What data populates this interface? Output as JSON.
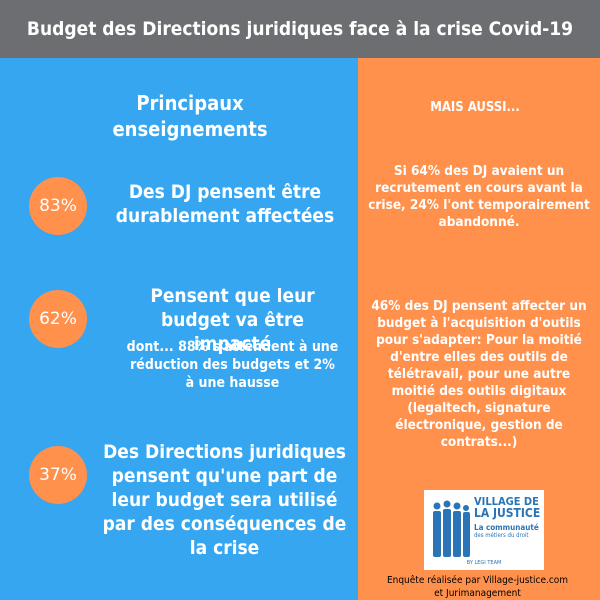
{
  "header": {
    "title": "Budget des Directions juridiques face à la crise Covid-19"
  },
  "left": {
    "section_title": "Principaux enseignements",
    "stats": [
      {
        "value": "83%",
        "text": "Des DJ pensent être durablement affectées"
      },
      {
        "value": "62%",
        "text": "Pensent que leur budget va être impacté",
        "sub": "dont... 88% s'attendent à une réduction des budgets et 2% à une hausse"
      },
      {
        "value": "37%",
        "text": "Des Directions juridiques pensent qu'une part de leur budget sera utilisé par des conséquences de la crise"
      }
    ]
  },
  "right": {
    "heading": "MAIS AUSSI...",
    "block1": "Si 64% des DJ avaient un recrutement en cours avant la crise, 24% l'ont temporairement abandonné.",
    "block2": "46% des DJ pensent affecter un budget à l'acquisition d'outils pour s'adapter: Pour la moitié d'entre elles des outils de télétravail, pour une autre moitié des outils digitaux  (legaltech, signature électronique, gestion de contrats...)"
  },
  "logo": {
    "line1": "VILLAGE DE",
    "line2": "LA JUSTICE",
    "line3": "La communauté",
    "line4": "des métiers du droit",
    "line5": "BY LEGI TEAM"
  },
  "footer": {
    "credit": "Enquête réalisée par Village-justice.com et Jurimanagement"
  },
  "colors": {
    "blue": "#37a6f1",
    "orange": "#ff914d",
    "header": "#6d6e71",
    "logo_blue": "#2b74b7"
  }
}
